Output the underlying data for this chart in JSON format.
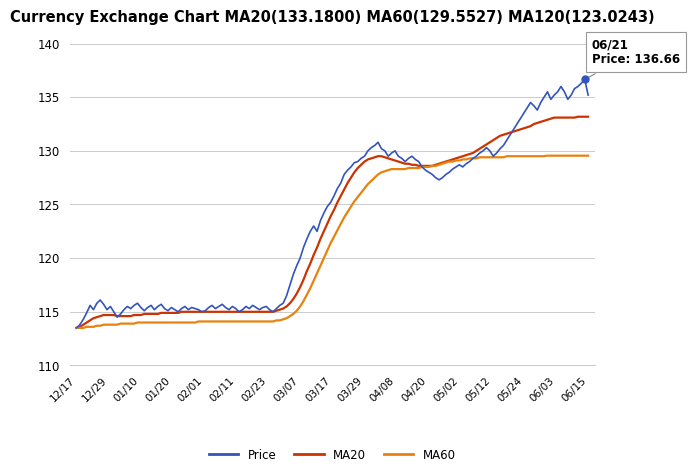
{
  "title": "Currency Exchange Chart MA20(133.1800) MA60(129.5527) MA120(123.0243)",
  "ylim": [
    110,
    141
  ],
  "yticks": [
    110,
    115,
    120,
    125,
    130,
    135,
    140
  ],
  "xtick_labels": [
    "12/17",
    "12/29",
    "01/10",
    "01/20",
    "02/01",
    "02/11",
    "02/23",
    "03/07",
    "03/17",
    "03/29",
    "04/08",
    "04/20",
    "05/02",
    "05/12",
    "05/24",
    "06/03",
    "06/15"
  ],
  "annotation_date": "06/21",
  "annotation_label": "Price: 136.66",
  "price_color": "#3355bb",
  "ma20_color": "#cc3300",
  "ma60_color": "#e8820c",
  "background_color": "#ffffff",
  "grid_color": "#cccccc",
  "title_fontsize": 10.5,
  "legend_labels": [
    "Price",
    "MA20",
    "MA60"
  ],
  "price_data": [
    113.5,
    113.8,
    114.3,
    114.9,
    115.6,
    115.2,
    115.8,
    116.1,
    115.7,
    115.2,
    115.5,
    115.0,
    114.5,
    114.8,
    115.2,
    115.5,
    115.3,
    115.6,
    115.8,
    115.4,
    115.1,
    115.4,
    115.6,
    115.2,
    115.5,
    115.7,
    115.3,
    115.1,
    115.4,
    115.2,
    115.0,
    115.3,
    115.5,
    115.2,
    115.4,
    115.3,
    115.2,
    115.0,
    115.1,
    115.4,
    115.6,
    115.3,
    115.5,
    115.7,
    115.4,
    115.2,
    115.5,
    115.3,
    115.0,
    115.2,
    115.5,
    115.3,
    115.6,
    115.4,
    115.2,
    115.4,
    115.5,
    115.2,
    115.0,
    115.3,
    115.6,
    115.8,
    116.5,
    117.5,
    118.5,
    119.3,
    120.0,
    121.0,
    121.8,
    122.5,
    123.0,
    122.5,
    123.5,
    124.2,
    124.8,
    125.2,
    125.8,
    126.5,
    127.0,
    127.8,
    128.2,
    128.5,
    128.9,
    129.0,
    129.3,
    129.5,
    130.0,
    130.3,
    130.5,
    130.8,
    130.2,
    130.0,
    129.5,
    129.8,
    130.0,
    129.5,
    129.3,
    129.0,
    129.3,
    129.5,
    129.2,
    129.0,
    128.5,
    128.2,
    128.0,
    127.8,
    127.5,
    127.3,
    127.5,
    127.8,
    128.0,
    128.3,
    128.5,
    128.7,
    128.5,
    128.8,
    129.0,
    129.3,
    129.5,
    129.8,
    130.0,
    130.3,
    130.0,
    129.5,
    129.8,
    130.2,
    130.5,
    131.0,
    131.5,
    132.0,
    132.5,
    133.0,
    133.5,
    134.0,
    134.5,
    134.2,
    133.8,
    134.5,
    135.0,
    135.5,
    134.8,
    135.2,
    135.5,
    136.0,
    135.5,
    134.8,
    135.2,
    135.8,
    136.0,
    136.3,
    136.66,
    135.2
  ],
  "ma20_data": [
    113.5,
    113.6,
    113.8,
    114.0,
    114.2,
    114.4,
    114.5,
    114.6,
    114.7,
    114.7,
    114.7,
    114.7,
    114.6,
    114.6,
    114.6,
    114.6,
    114.6,
    114.7,
    114.7,
    114.7,
    114.8,
    114.8,
    114.8,
    114.8,
    114.8,
    114.9,
    114.9,
    114.9,
    114.9,
    114.9,
    114.9,
    115.0,
    115.0,
    115.0,
    115.0,
    115.0,
    115.0,
    115.0,
    115.0,
    115.0,
    115.0,
    115.0,
    115.0,
    115.0,
    115.0,
    115.0,
    115.0,
    115.0,
    115.0,
    115.0,
    115.0,
    115.0,
    115.0,
    115.0,
    115.0,
    115.0,
    115.0,
    115.0,
    115.0,
    115.1,
    115.2,
    115.3,
    115.5,
    115.8,
    116.2,
    116.7,
    117.3,
    118.0,
    118.8,
    119.5,
    120.3,
    121.0,
    121.8,
    122.5,
    123.2,
    123.9,
    124.5,
    125.2,
    125.8,
    126.4,
    127.0,
    127.5,
    128.0,
    128.4,
    128.7,
    129.0,
    129.2,
    129.3,
    129.4,
    129.5,
    129.5,
    129.4,
    129.3,
    129.2,
    129.1,
    129.0,
    128.9,
    128.8,
    128.8,
    128.7,
    128.7,
    128.6,
    128.6,
    128.6,
    128.6,
    128.6,
    128.7,
    128.8,
    128.9,
    129.0,
    129.1,
    129.2,
    129.3,
    129.4,
    129.5,
    129.6,
    129.7,
    129.8,
    130.0,
    130.2,
    130.4,
    130.6,
    130.8,
    131.0,
    131.2,
    131.4,
    131.5,
    131.6,
    131.7,
    131.8,
    131.9,
    132.0,
    132.1,
    132.2,
    132.3,
    132.5,
    132.6,
    132.7,
    132.8,
    132.9,
    133.0,
    133.1,
    133.1,
    133.1,
    133.1,
    133.1,
    133.1,
    133.1,
    133.18,
    133.18,
    133.18,
    133.18
  ],
  "ma60_data": [
    113.5,
    113.5,
    113.5,
    113.6,
    113.6,
    113.6,
    113.7,
    113.7,
    113.8,
    113.8,
    113.8,
    113.8,
    113.8,
    113.9,
    113.9,
    113.9,
    113.9,
    113.9,
    114.0,
    114.0,
    114.0,
    114.0,
    114.0,
    114.0,
    114.0,
    114.0,
    114.0,
    114.0,
    114.0,
    114.0,
    114.0,
    114.0,
    114.0,
    114.0,
    114.0,
    114.0,
    114.1,
    114.1,
    114.1,
    114.1,
    114.1,
    114.1,
    114.1,
    114.1,
    114.1,
    114.1,
    114.1,
    114.1,
    114.1,
    114.1,
    114.1,
    114.1,
    114.1,
    114.1,
    114.1,
    114.1,
    114.1,
    114.1,
    114.1,
    114.2,
    114.2,
    114.3,
    114.4,
    114.6,
    114.8,
    115.1,
    115.5,
    116.0,
    116.6,
    117.2,
    117.9,
    118.6,
    119.3,
    120.0,
    120.7,
    121.4,
    122.0,
    122.6,
    123.2,
    123.8,
    124.3,
    124.8,
    125.3,
    125.7,
    126.1,
    126.5,
    126.9,
    127.2,
    127.5,
    127.8,
    128.0,
    128.1,
    128.2,
    128.3,
    128.3,
    128.3,
    128.3,
    128.3,
    128.4,
    128.4,
    128.4,
    128.4,
    128.5,
    128.5,
    128.5,
    128.6,
    128.6,
    128.7,
    128.8,
    128.9,
    129.0,
    129.0,
    129.1,
    129.1,
    129.2,
    129.2,
    129.3,
    129.3,
    129.3,
    129.4,
    129.4,
    129.4,
    129.4,
    129.4,
    129.4,
    129.4,
    129.4,
    129.5,
    129.5,
    129.5,
    129.5,
    129.5,
    129.5,
    129.5,
    129.5,
    129.5,
    129.5,
    129.5,
    129.5,
    129.55,
    129.55,
    129.55,
    129.55,
    129.55,
    129.55,
    129.55,
    129.55,
    129.55,
    129.55,
    129.55,
    129.55,
    129.55
  ]
}
